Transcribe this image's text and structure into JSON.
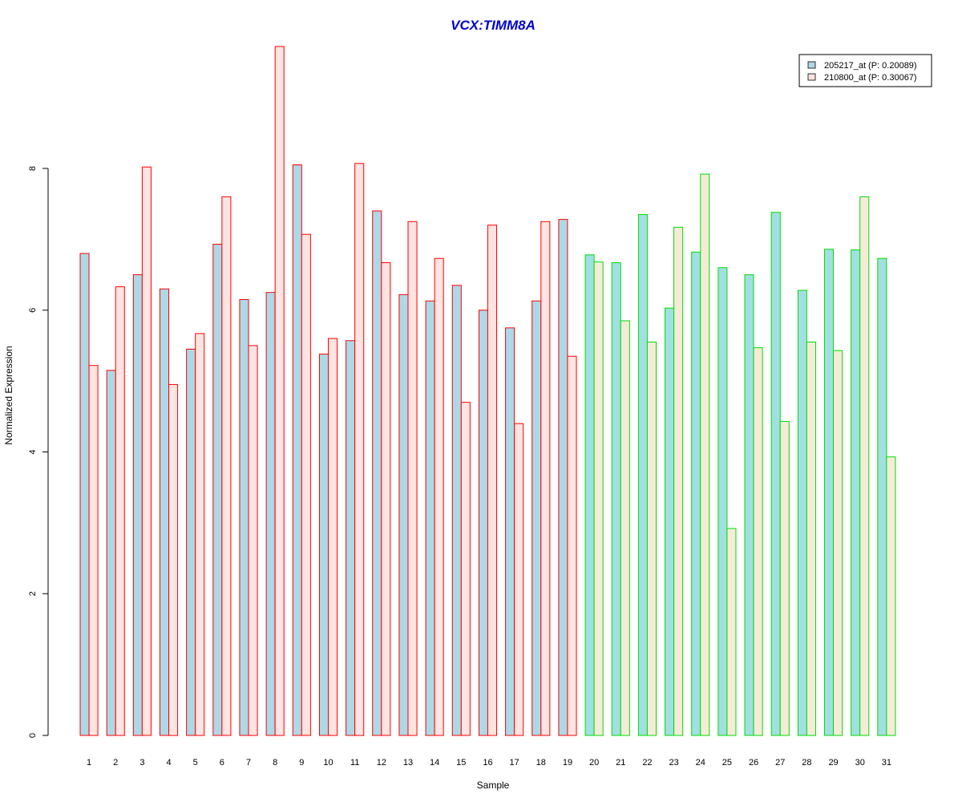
{
  "chart_data": {
    "type": "bar",
    "title": "VCX:TIMM8A",
    "xlabel": "Sample",
    "ylabel": "Normalized Expression",
    "ylim": [
      0,
      9.8
    ],
    "yticks": [
      0,
      2,
      4,
      6,
      8
    ],
    "grid": false,
    "legend_position": "top-right",
    "categories": [
      "1",
      "2",
      "3",
      "4",
      "5",
      "6",
      "7",
      "8",
      "9",
      "10",
      "11",
      "12",
      "13",
      "14",
      "15",
      "16",
      "17",
      "18",
      "19",
      "20",
      "21",
      "22",
      "23",
      "24",
      "25",
      "26",
      "27",
      "28",
      "29",
      "30",
      "31"
    ],
    "group_sizes": [
      19,
      12
    ],
    "group_border_colors": [
      "#ff0000",
      "#00dd00"
    ],
    "series": [
      {
        "name": "205217_at (P: 0.20089)",
        "fill_colors": [
          "#add8e6",
          "#a0e0e0"
        ],
        "values": [
          6.8,
          5.15,
          6.5,
          6.3,
          5.45,
          6.93,
          6.15,
          6.25,
          8.05,
          5.38,
          5.57,
          7.4,
          6.22,
          6.13,
          6.35,
          6.0,
          5.75,
          6.13,
          7.28,
          6.78,
          6.67,
          7.35,
          6.03,
          6.82,
          6.6,
          6.5,
          7.38,
          6.28,
          6.86,
          6.85,
          6.73
        ]
      },
      {
        "name": "210800_at (P: 0.30067)",
        "fill_colors": [
          "#ffe4e1",
          "#f5ecd8"
        ],
        "values": [
          5.22,
          6.33,
          8.02,
          4.95,
          5.67,
          7.6,
          5.5,
          9.72,
          7.07,
          5.6,
          8.07,
          6.67,
          7.25,
          6.73,
          4.7,
          7.2,
          4.4,
          7.25,
          5.35,
          6.68,
          5.85,
          5.55,
          7.17,
          7.92,
          2.92,
          5.47,
          4.43,
          5.55,
          5.43,
          7.6,
          3.93
        ]
      }
    ]
  }
}
